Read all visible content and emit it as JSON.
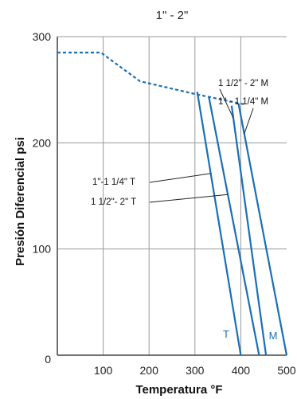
{
  "chart_data": {
    "type": "line",
    "title": "1\" - 2\"",
    "xlabel": "Temperatura  °F",
    "ylabel": "Presión Diferencial psi",
    "xlim": [
      0,
      500
    ],
    "ylim": [
      0,
      300
    ],
    "x_ticks": [
      "100",
      "200",
      "300",
      "400",
      "500"
    ],
    "y_ticks": [
      "0",
      "100",
      "200",
      "300"
    ],
    "grid": true,
    "colors": {
      "series": "#1a6fb5",
      "grid": "#9a9a9a",
      "axis": "#444444",
      "text": "#111111"
    },
    "series": [
      {
        "name": "1 1/2\" - 2\" M",
        "style": "solid",
        "points": [
          [
            380,
            235
          ],
          [
            455,
            0
          ]
        ]
      },
      {
        "name": "1\" - 1 1/4\" M",
        "style": "solid",
        "points": [
          [
            395,
            237
          ],
          [
            500,
            0
          ]
        ]
      },
      {
        "name": "1\"-1 1/4\" T",
        "style": "solid",
        "points": [
          [
            305,
            248
          ],
          [
            400,
            0
          ]
        ]
      },
      {
        "name": "1 1/2\"- 2\" T",
        "style": "solid",
        "points": [
          [
            330,
            244
          ],
          [
            440,
            0
          ]
        ]
      },
      {
        "name": "",
        "style": "dashed",
        "points": [
          [
            0,
            285
          ],
          [
            95,
            285
          ],
          [
            180,
            258
          ],
          [
            300,
            246
          ],
          [
            410,
            236
          ]
        ]
      }
    ],
    "annotations": [
      {
        "text": "1 1/2\" - 2\" M"
      },
      {
        "text": "1\" - 1 1/4\" M"
      },
      {
        "text": "1\"-1 1/4\" T"
      },
      {
        "text": "1 1/2\"- 2\" T"
      },
      {
        "text": "T"
      },
      {
        "text": "M"
      }
    ]
  }
}
